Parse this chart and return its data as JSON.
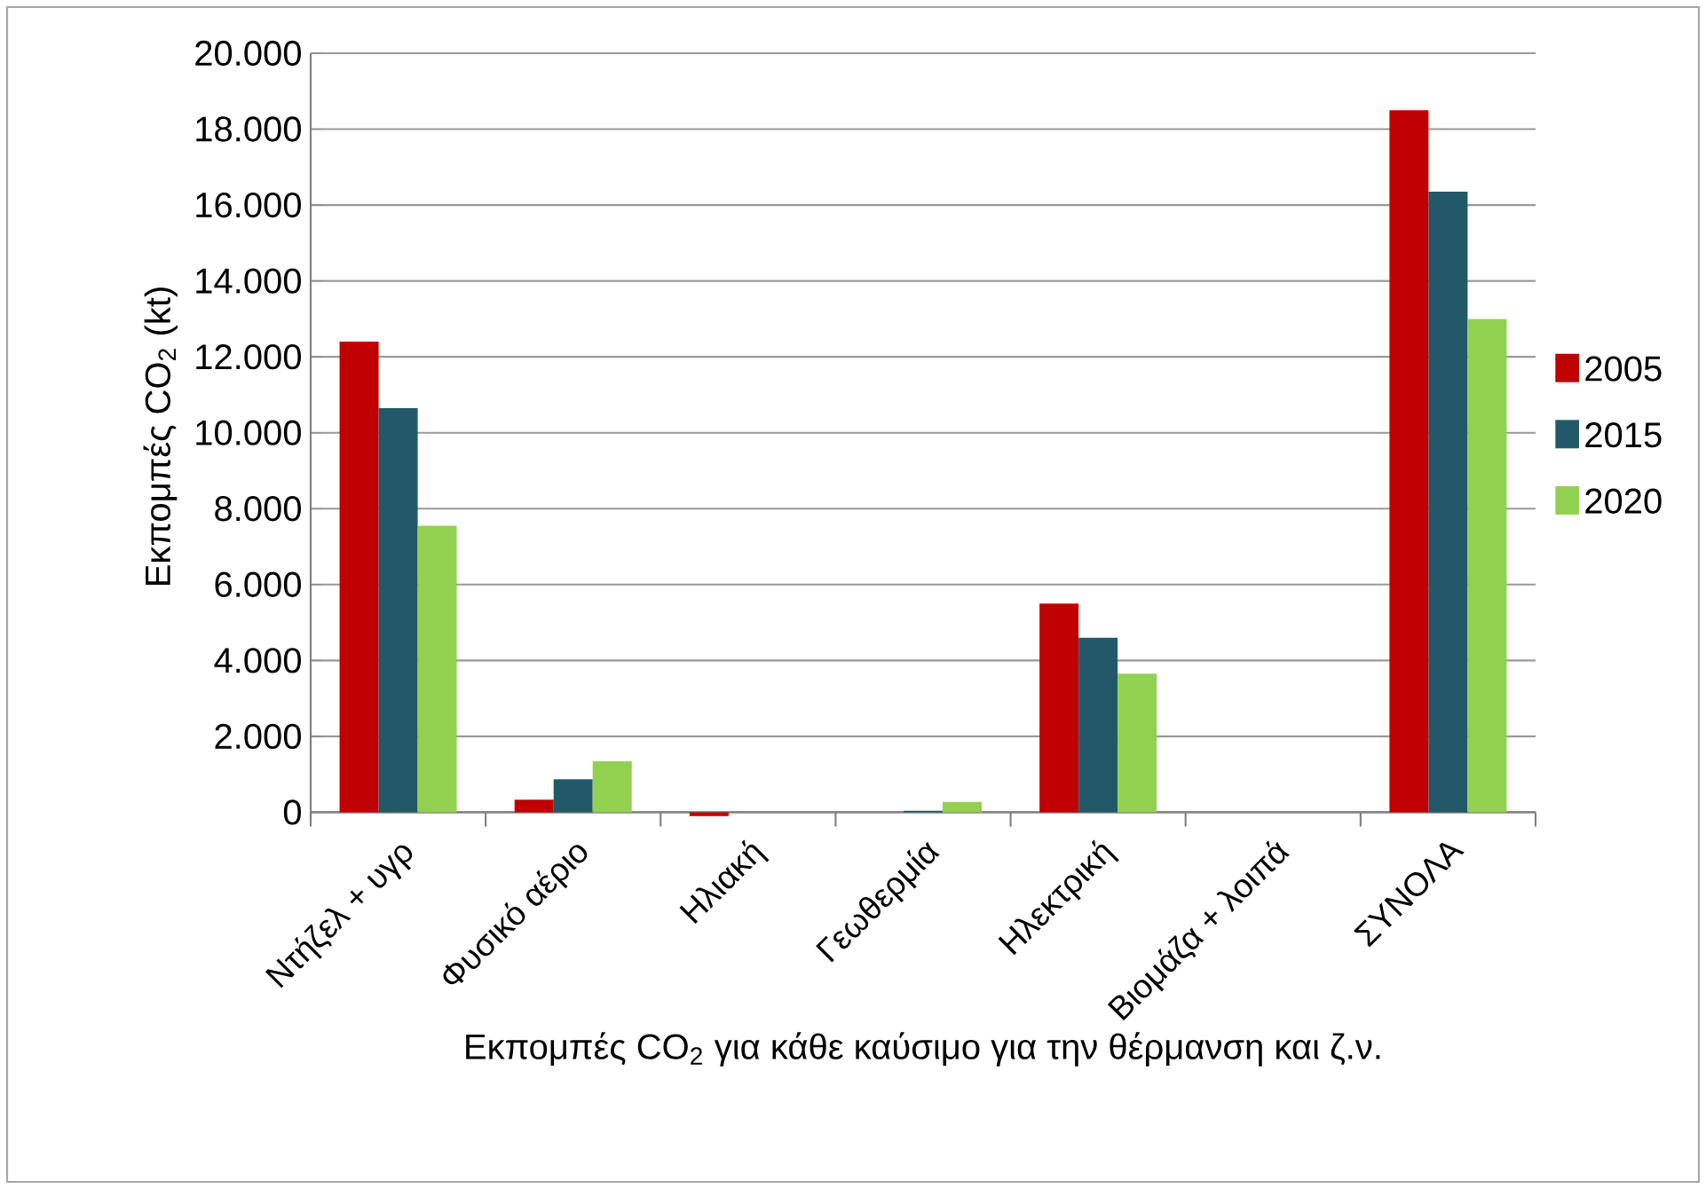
{
  "chart_data": {
    "type": "bar",
    "xlabel": "Εκπομπές CO$_{2}$ για κάθε καύσιμο για την θέρμανση και ζ.ν.",
    "ylabel": "Εκπομπές CO$_{2}$  (kt)",
    "categories": [
      "Ντήζελ + υγρ",
      "Φυσικό αέριο",
      "Ηλιακή",
      "Γεωθερμία",
      "Ηλεκτρική",
      "Βιομάζα + λοιπά",
      "ΣΥΝΟΛΑ"
    ],
    "series": [
      {
        "name": "2005",
        "color": "#c00000",
        "values": [
          12400,
          330,
          -100,
          0,
          5500,
          0,
          18500
        ]
      },
      {
        "name": "2015",
        "color": "#215968",
        "values": [
          10650,
          870,
          0,
          40,
          4600,
          0,
          16350
        ]
      },
      {
        "name": "2020",
        "color": "#92d050",
        "values": [
          7550,
          1340,
          0,
          270,
          3650,
          0,
          13000
        ]
      }
    ],
    "ylim": [
      -200,
      20000
    ],
    "yticks": [
      0,
      {
        "value": 2000,
        "label": "2.000"
      },
      {
        "value": 4000,
        "label": "4.000"
      },
      {
        "value": 6000,
        "label": "6.000"
      },
      {
        "value": 8000,
        "label": "8.000"
      },
      {
        "value": 10000,
        "label": "10.000"
      },
      {
        "value": 12000,
        "label": "12.000"
      },
      {
        "value": 14000,
        "label": "14.000"
      },
      {
        "value": 16000,
        "label": "16.000"
      },
      {
        "value": 18000,
        "label": "18.000"
      },
      {
        "value": 20000,
        "label": "20.000"
      }
    ],
    "grid": "y",
    "legend": "right"
  }
}
